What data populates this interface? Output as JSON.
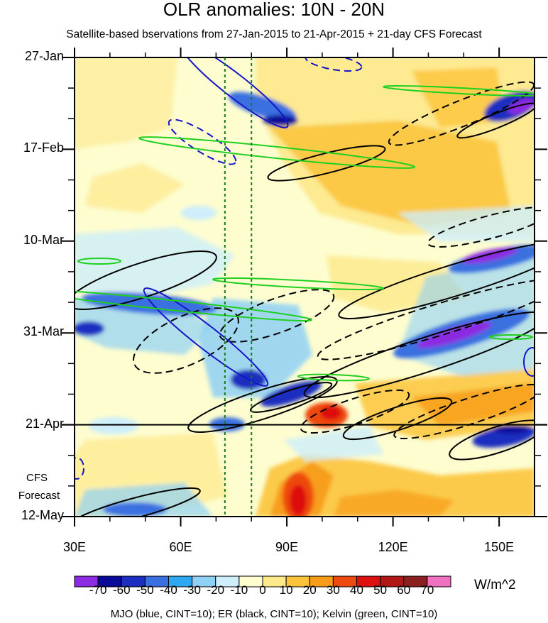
{
  "chart_data": {
    "type": "heatmap",
    "title": "OLR anomalies: 10N - 20N",
    "subtitle": "Satellite-based bservations from 27-Jan-2015 to 21-Apr-2015 + 21-day CFS Forecast",
    "x_ticks": [
      {
        "value": 30,
        "label": "30E"
      },
      {
        "value": 60,
        "label": "60E"
      },
      {
        "value": 90,
        "label": "90E"
      },
      {
        "value": 120,
        "label": "120E"
      },
      {
        "value": 150,
        "label": "150E"
      }
    ],
    "xlim": [
      30,
      160
    ],
    "y_ticks": [
      {
        "day": 0,
        "label": "27-Jan"
      },
      {
        "day": 21,
        "label": "17-Feb"
      },
      {
        "day": 42,
        "label": "10-Mar"
      },
      {
        "day": 63,
        "label": "31-Mar"
      },
      {
        "day": 84,
        "label": "21-Apr"
      },
      {
        "day": 105,
        "label": "12-May"
      }
    ],
    "ylim_days": [
      0,
      105
    ],
    "forecast_start_day": 84,
    "forecast_label": [
      "CFS",
      "Forecast"
    ],
    "reference_longitudes": [
      72.5,
      80
    ],
    "colorbar": {
      "labels": [
        "-70",
        "-60",
        "-50",
        "-40",
        "-30",
        "-20",
        "-10",
        "0",
        "10",
        "20",
        "30",
        "40",
        "50",
        "60",
        "70"
      ],
      "colors": [
        "#8c2be2",
        "#0a0a9a",
        "#1c2fbf",
        "#3a6fe0",
        "#2ea8f0",
        "#8fd0f5",
        "#cdeefa",
        "#fdfdd0",
        "#fde88a",
        "#fcc43a",
        "#f79c1a",
        "#ee4a10",
        "#dd1010",
        "#b01818",
        "#8b2020",
        "#f071c0"
      ],
      "units": "W/m^2"
    },
    "olr_anomaly_features": [
      {
        "lon": 150,
        "day": 13,
        "value": -70
      },
      {
        "lon": 145,
        "day": 46,
        "value": -70
      },
      {
        "lon": 138,
        "day": 64,
        "value": -70
      },
      {
        "lon": 148,
        "day": 87,
        "value": -50
      },
      {
        "lon": 45,
        "day": 56,
        "value": -50
      },
      {
        "lon": 80,
        "day": 78,
        "value": -40
      },
      {
        "lon": 68,
        "day": 14,
        "value": -50
      },
      {
        "lon": 97,
        "day": 82,
        "value": 50
      },
      {
        "lon": 92,
        "day": 100,
        "value": 40
      }
    ],
    "contour_legend": "MJO (blue, CINT=10); ER (black, CINT=10); Kelvin (green, CINT=10)"
  }
}
